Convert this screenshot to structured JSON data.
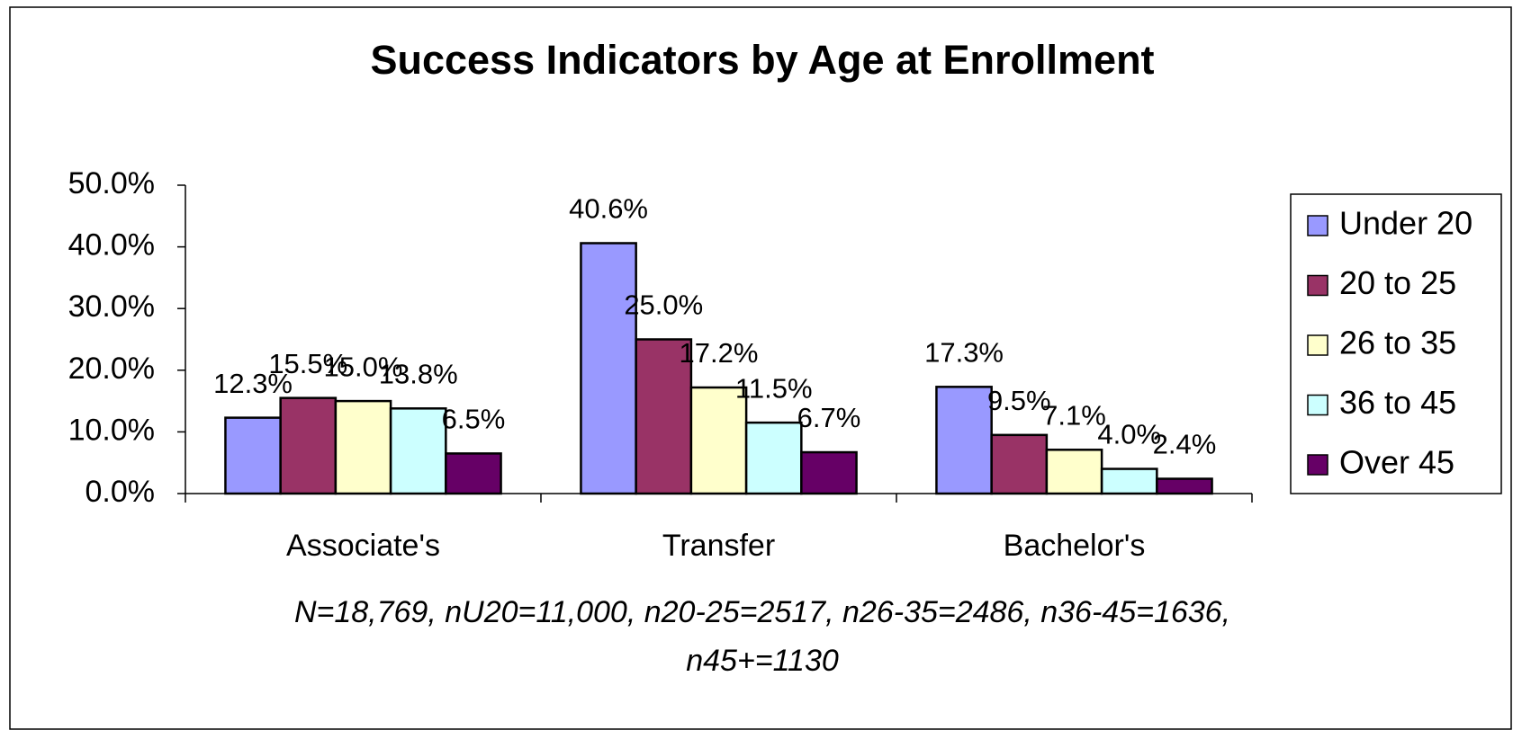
{
  "chart_data": {
    "type": "bar",
    "title": "Success Indicators by Age at Enrollment",
    "categories": [
      "Associate's",
      "Transfer",
      "Bachelor's"
    ],
    "series": [
      {
        "name": "Under 20",
        "color": "#9999ff",
        "values": [
          12.3,
          40.6,
          17.3
        ],
        "value_labels": [
          "12.3%",
          "40.6%",
          "17.3%"
        ]
      },
      {
        "name": "20 to 25",
        "color": "#993366",
        "values": [
          15.5,
          25.0,
          9.5
        ],
        "value_labels": [
          "15.5%",
          "25.0%",
          "9.5%"
        ]
      },
      {
        "name": "26 to 35",
        "color": "#ffffcc",
        "values": [
          15.0,
          17.2,
          7.1
        ],
        "value_labels": [
          "15.0%",
          "17.2%",
          "7.1%"
        ]
      },
      {
        "name": "36 to 45",
        "color": "#ccffff",
        "values": [
          13.8,
          11.5,
          4.0
        ],
        "value_labels": [
          "13.8%",
          "11.5%",
          "4.0%"
        ]
      },
      {
        "name": "Over 45",
        "color": "#660066",
        "values": [
          6.5,
          6.7,
          2.4
        ],
        "value_labels": [
          "6.5%",
          "6.7%",
          "2.4%"
        ]
      }
    ],
    "ylim": [
      0,
      50
    ],
    "yticks": [
      {
        "value": 0,
        "label": "0.0%"
      },
      {
        "value": 10,
        "label": "10.0%"
      },
      {
        "value": 20,
        "label": "20.0%"
      },
      {
        "value": 30,
        "label": "30.0%"
      },
      {
        "value": 40,
        "label": "40.0%"
      },
      {
        "value": 50,
        "label": "50.0%"
      }
    ],
    "legend": "right",
    "note": [
      "N=18,769, nU20=11,000, n20-25=2517, n26-35=2486, n36-45=1636,",
      "n45+=1130"
    ]
  }
}
